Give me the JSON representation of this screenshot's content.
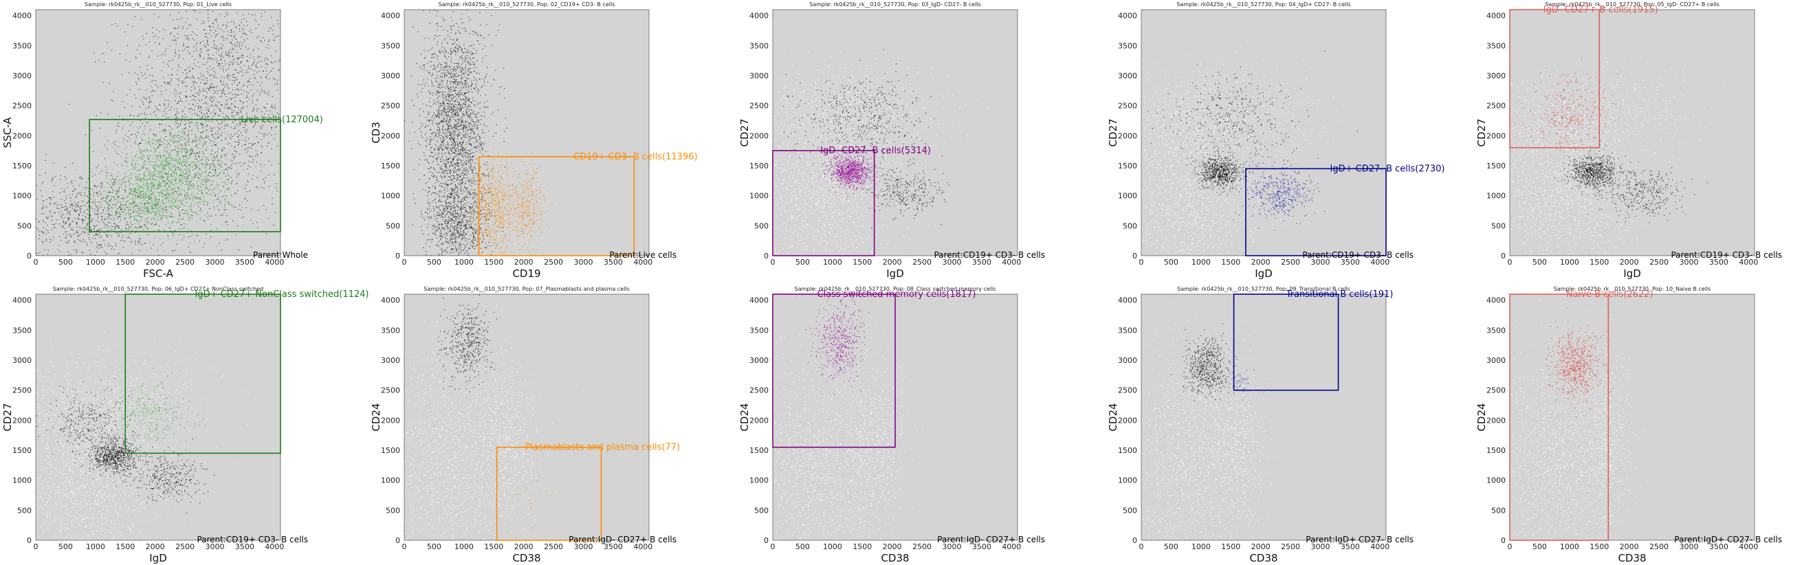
{
  "chart_data": [
    {
      "type": "scatter",
      "title": "Sample: rk0425b_rk__010_527730, Pop: 01_Live cells",
      "xlabel": "FSC-A",
      "ylabel": "SSC-A",
      "xlim": [
        0,
        4100
      ],
      "ylim": [
        0,
        4100
      ],
      "xticks": [
        0,
        500,
        1000,
        1500,
        2000,
        2500,
        3000,
        3500,
        4000
      ],
      "yticks": [
        0,
        500,
        1000,
        1500,
        2000,
        2500,
        3000,
        3500,
        4000
      ],
      "grid": false,
      "parent_label": "Parent:Whole",
      "gate": {
        "label": "Live cells(127004)",
        "color": "#1b7a1b",
        "x": [
          900,
          4100
        ],
        "y": [
          400,
          2270
        ]
      },
      "populations": [
        {
          "role": "background",
          "color": "#000000",
          "clusters": [
            {
              "cx": 2900,
              "cy": 2300,
              "sx": 750,
              "sy": 950,
              "n": 1600
            },
            {
              "cx": 900,
              "cy": 650,
              "sx": 650,
              "sy": 380,
              "n": 900
            },
            {
              "cx": 3200,
              "cy": 3300,
              "sx": 700,
              "sy": 700,
              "n": 500
            }
          ]
        },
        {
          "role": "gated",
          "color": "#2ea02e",
          "clusters": [
            {
              "cx": 2300,
              "cy": 1350,
              "sx": 450,
              "sy": 400,
              "n": 1500
            },
            {
              "cx": 1800,
              "cy": 900,
              "sx": 350,
              "sy": 250,
              "n": 600
            }
          ]
        }
      ]
    },
    {
      "type": "scatter",
      "title": "Sample: rk0425b_rk__010_527730, Pop: 02_CD19+ CD3- B cells",
      "xlabel": "CD19",
      "ylabel": "CD3",
      "xlim": [
        0,
        4100
      ],
      "ylim": [
        0,
        4100
      ],
      "xticks": [
        0,
        500,
        1000,
        1500,
        2000,
        2500,
        3000,
        3500,
        4000
      ],
      "yticks": [
        0,
        500,
        1000,
        1500,
        2000,
        2500,
        3000,
        3500,
        4000
      ],
      "grid": false,
      "parent_label": "Parent:Live cells",
      "gate": {
        "label": "CD19+ CD3- B cells(11396)",
        "color": "#ff8c00",
        "x": [
          1250,
          3850
        ],
        "y": [
          0,
          1650
        ]
      },
      "populations": [
        {
          "role": "background",
          "color": "#000000",
          "clusters": [
            {
              "cx": 850,
              "cy": 2200,
              "sx": 260,
              "sy": 850,
              "n": 2200
            },
            {
              "cx": 900,
              "cy": 500,
              "sx": 280,
              "sy": 400,
              "n": 900
            }
          ]
        },
        {
          "role": "gated",
          "color": "#ff8c00",
          "clusters": [
            {
              "cx": 1500,
              "cy": 800,
              "sx": 180,
              "sy": 400,
              "n": 700
            },
            {
              "cx": 2050,
              "cy": 800,
              "sx": 150,
              "sy": 350,
              "n": 400
            }
          ]
        }
      ]
    },
    {
      "type": "scatter",
      "title": "Sample: rk0425b_rk__010_527730, Pop: 03_IgD- CD27- B cells",
      "xlabel": "IgD",
      "ylabel": "CD27",
      "xlim": [
        0,
        4100
      ],
      "ylim": [
        0,
        4100
      ],
      "xticks": [
        0,
        500,
        1000,
        1500,
        2000,
        2500,
        3000,
        3500,
        4000
      ],
      "yticks": [
        0,
        500,
        1000,
        1500,
        2000,
        2500,
        3000,
        3500,
        4000
      ],
      "grid": false,
      "parent_label": "Parent:CD19+ CD3- B cells",
      "gate": {
        "label": "IgD- CD27- B cells(5314)",
        "color": "#800080",
        "x": [
          0,
          1700
        ],
        "y": [
          0,
          1750
        ]
      },
      "populations": [
        {
          "role": "faint",
          "color": "#ffffff",
          "clusters": [
            {
              "cx": 800,
              "cy": 1000,
              "sx": 600,
              "sy": 700,
              "n": 1400
            },
            {
              "cx": 1200,
              "cy": 2300,
              "sx": 800,
              "sy": 400,
              "n": 800
            }
          ]
        },
        {
          "role": "background",
          "color": "#000000",
          "clusters": [
            {
              "cx": 1500,
              "cy": 2300,
              "sx": 500,
              "sy": 350,
              "n": 500
            },
            {
              "cx": 2200,
              "cy": 1050,
              "sx": 300,
              "sy": 200,
              "n": 300
            }
          ]
        },
        {
          "role": "gated",
          "color": "#9a0a9a",
          "clusters": [
            {
              "cx": 1300,
              "cy": 1400,
              "sx": 180,
              "sy": 130,
              "n": 900
            }
          ]
        }
      ]
    },
    {
      "type": "scatter",
      "title": "Sample: rk0425b_rk__010_527730, Pop: 04_IgD+ CD27- B cells",
      "xlabel": "IgD",
      "ylabel": "CD27",
      "xlim": [
        0,
        4100
      ],
      "ylim": [
        0,
        4100
      ],
      "xticks": [
        0,
        500,
        1000,
        1500,
        2000,
        2500,
        3000,
        3500,
        4000
      ],
      "yticks": [
        0,
        500,
        1000,
        1500,
        2000,
        2500,
        3000,
        3500,
        4000
      ],
      "grid": false,
      "parent_label": "Parent:CD19+ CD3- B cells",
      "gate": {
        "label": "IgD+ CD27- B cells(2730)",
        "color": "#00008b",
        "x": [
          1750,
          4100
        ],
        "y": [
          0,
          1450
        ]
      },
      "populations": [
        {
          "role": "faint",
          "color": "#ffffff",
          "clusters": [
            {
              "cx": 800,
              "cy": 1000,
              "sx": 600,
              "sy": 700,
              "n": 1400
            },
            {
              "cx": 1200,
              "cy": 2300,
              "sx": 800,
              "sy": 400,
              "n": 800
            }
          ]
        },
        {
          "role": "background",
          "color": "#000000",
          "clusters": [
            {
              "cx": 1300,
              "cy": 1400,
              "sx": 180,
              "sy": 130,
              "n": 700
            },
            {
              "cx": 1500,
              "cy": 2300,
              "sx": 500,
              "sy": 350,
              "n": 400
            }
          ]
        },
        {
          "role": "gated",
          "color": "#1a1aa0",
          "clusters": [
            {
              "cx": 2300,
              "cy": 1050,
              "sx": 280,
              "sy": 200,
              "n": 450
            }
          ]
        }
      ]
    },
    {
      "type": "scatter",
      "title": "Sample: rk0425b_rk__010_527730, Pop: 05_IgD- CD27+ B cells",
      "xlabel": "IgD",
      "ylabel": "CD27",
      "xlim": [
        0,
        4100
      ],
      "ylim": [
        0,
        4100
      ],
      "xticks": [
        0,
        500,
        1000,
        1500,
        2000,
        2500,
        3000,
        3500,
        4000
      ],
      "yticks": [
        0,
        500,
        1000,
        1500,
        2000,
        2500,
        3000,
        3500,
        4000
      ],
      "grid": false,
      "parent_label": "Parent:CD19+ CD3- B cells",
      "gate": {
        "label": "IgD- CD27+ B cells(1915)",
        "color": "#e06060",
        "x": [
          0,
          1500
        ],
        "y": [
          1800,
          4100
        ]
      },
      "populations": [
        {
          "role": "faint",
          "color": "#ffffff",
          "clusters": [
            {
              "cx": 800,
              "cy": 1000,
              "sx": 600,
              "sy": 700,
              "n": 1400
            },
            {
              "cx": 1200,
              "cy": 2300,
              "sx": 800,
              "sy": 400,
              "n": 600
            }
          ]
        },
        {
          "role": "background",
          "color": "#000000",
          "clusters": [
            {
              "cx": 1400,
              "cy": 1400,
              "sx": 200,
              "sy": 140,
              "n": 700
            },
            {
              "cx": 2200,
              "cy": 1050,
              "sx": 300,
              "sy": 200,
              "n": 350
            }
          ]
        },
        {
          "role": "gated",
          "color": "#e03030",
          "clusters": [
            {
              "cx": 1000,
              "cy": 2400,
              "sx": 350,
              "sy": 300,
              "n": 350
            }
          ]
        }
      ]
    },
    {
      "type": "scatter",
      "title": "Sample: rk0425b_rk__010_527730, Pop: 06_IgD+ CD27+ NonClass switched",
      "xlabel": "IgD",
      "ylabel": "CD27",
      "xlim": [
        0,
        4100
      ],
      "ylim": [
        0,
        4100
      ],
      "xticks": [
        0,
        500,
        1000,
        1500,
        2000,
        2500,
        3000,
        3500,
        4000
      ],
      "yticks": [
        0,
        500,
        1000,
        1500,
        2000,
        2500,
        3000,
        3500,
        4000
      ],
      "grid": false,
      "parent_label": "Parent:CD19+ CD3- B cells",
      "gate": {
        "label": "IgD+ CD27+ NonClass switched(1124)",
        "color": "#1b7a1b",
        "x": [
          1500,
          4100
        ],
        "y": [
          1450,
          4100
        ]
      },
      "populations": [
        {
          "role": "faint",
          "color": "#ffffff",
          "clusters": [
            {
              "cx": 800,
              "cy": 1000,
              "sx": 600,
              "sy": 700,
              "n": 1400
            },
            {
              "cx": 1200,
              "cy": 2300,
              "sx": 800,
              "sy": 400,
              "n": 600
            }
          ]
        },
        {
          "role": "background",
          "color": "#000000",
          "clusters": [
            {
              "cx": 1300,
              "cy": 1400,
              "sx": 200,
              "sy": 140,
              "n": 700
            },
            {
              "cx": 2200,
              "cy": 1050,
              "sx": 300,
              "sy": 200,
              "n": 350
            },
            {
              "cx": 900,
              "cy": 2000,
              "sx": 300,
              "sy": 300,
              "n": 300
            }
          ]
        },
        {
          "role": "gated",
          "color": "#2ea02e",
          "clusters": [
            {
              "cx": 1900,
              "cy": 2100,
              "sx": 300,
              "sy": 250,
              "n": 250
            }
          ]
        }
      ]
    },
    {
      "type": "scatter",
      "title": "Sample: rk0425b_rk__010_527730, Pop: 07_Plasmablasts and plasma cells",
      "xlabel": "CD38",
      "ylabel": "CD24",
      "xlim": [
        0,
        4100
      ],
      "ylim": [
        0,
        4100
      ],
      "xticks": [
        0,
        500,
        1000,
        1500,
        2000,
        2500,
        3000,
        3500,
        4000
      ],
      "yticks": [
        0,
        500,
        1000,
        1500,
        2000,
        2500,
        3000,
        3500,
        4000
      ],
      "grid": false,
      "parent_label": "Parent:IgD- CD27+ B cells",
      "gate": {
        "label": "Plasmablasts and plasma cells(77)",
        "color": "#ff8c00",
        "x": [
          1550,
          3300
        ],
        "y": [
          0,
          1550
        ]
      },
      "populations": [
        {
          "role": "faint",
          "color": "#ffffff",
          "clusters": [
            {
              "cx": 700,
              "cy": 1200,
              "sx": 500,
              "sy": 900,
              "n": 1300
            },
            {
              "cx": 1700,
              "cy": 1600,
              "sx": 250,
              "sy": 700,
              "n": 600
            }
          ]
        },
        {
          "role": "background",
          "color": "#000000",
          "clusters": [
            {
              "cx": 1050,
              "cy": 3300,
              "sx": 200,
              "sy": 300,
              "n": 450
            }
          ]
        },
        {
          "role": "gated",
          "color": "#ff8c00",
          "clusters": [
            {
              "cx": 2100,
              "cy": 800,
              "sx": 250,
              "sy": 300,
              "n": 30
            }
          ]
        }
      ]
    },
    {
      "type": "scatter",
      "title": "Sample: rk0425b_rk__010_527730, Pop: 08_Class switched memory cells",
      "xlabel": "CD38",
      "ylabel": "CD24",
      "xlim": [
        0,
        4100
      ],
      "ylim": [
        0,
        4100
      ],
      "xticks": [
        0,
        500,
        1000,
        1500,
        2000,
        2500,
        3000,
        3500,
        4000
      ],
      "yticks": [
        0,
        500,
        1000,
        1500,
        2000,
        2500,
        3000,
        3500,
        4000
      ],
      "grid": false,
      "parent_label": "Parent:IgD- CD27+ B cells",
      "gate": {
        "label": "Class switched memory cells(1817)",
        "color": "#800080",
        "x": [
          0,
          2050
        ],
        "y": [
          1550,
          4100
        ]
      },
      "populations": [
        {
          "role": "faint",
          "color": "#ffffff",
          "clusters": [
            {
              "cx": 700,
              "cy": 1200,
              "sx": 500,
              "sy": 900,
              "n": 1300
            },
            {
              "cx": 1700,
              "cy": 1600,
              "sx": 250,
              "sy": 700,
              "n": 600
            }
          ]
        },
        {
          "role": "gated",
          "color": "#9a0a9a",
          "clusters": [
            {
              "cx": 1100,
              "cy": 3300,
              "sx": 200,
              "sy": 320,
              "n": 500
            }
          ]
        }
      ]
    },
    {
      "type": "scatter",
      "title": "Sample: rk0425b_rk__010_527730, Pop: 09_Transitional B cells",
      "xlabel": "CD38",
      "ylabel": "CD24",
      "xlim": [
        0,
        4100
      ],
      "ylim": [
        0,
        4100
      ],
      "xticks": [
        0,
        500,
        1000,
        1500,
        2000,
        2500,
        3000,
        3500,
        4000
      ],
      "yticks": [
        0,
        500,
        1000,
        1500,
        2000,
        2500,
        3000,
        3500,
        4000
      ],
      "grid": false,
      "parent_label": "Parent:IgD+ CD27- B cells",
      "gate": {
        "label": "Transitional B cells(191)",
        "color": "#00008b",
        "x": [
          1550,
          3300
        ],
        "y": [
          2500,
          4100
        ]
      },
      "populations": [
        {
          "role": "faint",
          "color": "#ffffff",
          "clusters": [
            {
              "cx": 800,
              "cy": 1300,
              "sx": 500,
              "sy": 900,
              "n": 1300
            },
            {
              "cx": 1600,
              "cy": 1700,
              "sx": 200,
              "sy": 700,
              "n": 500
            }
          ]
        },
        {
          "role": "background",
          "color": "#000000",
          "clusters": [
            {
              "cx": 1100,
              "cy": 2900,
              "sx": 180,
              "sy": 230,
              "n": 550
            }
          ]
        },
        {
          "role": "gated",
          "color": "#1a1aa0",
          "clusters": [
            {
              "cx": 1650,
              "cy": 2700,
              "sx": 80,
              "sy": 120,
              "n": 40
            }
          ]
        }
      ]
    },
    {
      "type": "scatter",
      "title": "Sample: rk0425b_rk__010_527730, Pop: 10_Naive B cells",
      "xlabel": "CD38",
      "ylabel": "CD24",
      "xlim": [
        0,
        4100
      ],
      "ylim": [
        0,
        4100
      ],
      "xticks": [
        0,
        500,
        1000,
        1500,
        2000,
        2500,
        3000,
        3500,
        4000
      ],
      "yticks": [
        0,
        500,
        1000,
        1500,
        2000,
        2500,
        3000,
        3500,
        4000
      ],
      "grid": false,
      "parent_label": "Parent:IgD+ CD27- B cells",
      "gate": {
        "label": "Naive B cells(2622)",
        "color": "#e06060",
        "x": [
          0,
          1650
        ],
        "y": [
          0,
          4100
        ]
      },
      "populations": [
        {
          "role": "faint",
          "color": "#ffffff",
          "clusters": [
            {
              "cx": 800,
              "cy": 1300,
              "sx": 500,
              "sy": 900,
              "n": 1300
            },
            {
              "cx": 1600,
              "cy": 1700,
              "sx": 200,
              "sy": 700,
              "n": 500
            }
          ]
        },
        {
          "role": "gated",
          "color": "#e03030",
          "clusters": [
            {
              "cx": 1100,
              "cy": 2900,
              "sx": 200,
              "sy": 250,
              "n": 600
            }
          ]
        }
      ]
    }
  ]
}
